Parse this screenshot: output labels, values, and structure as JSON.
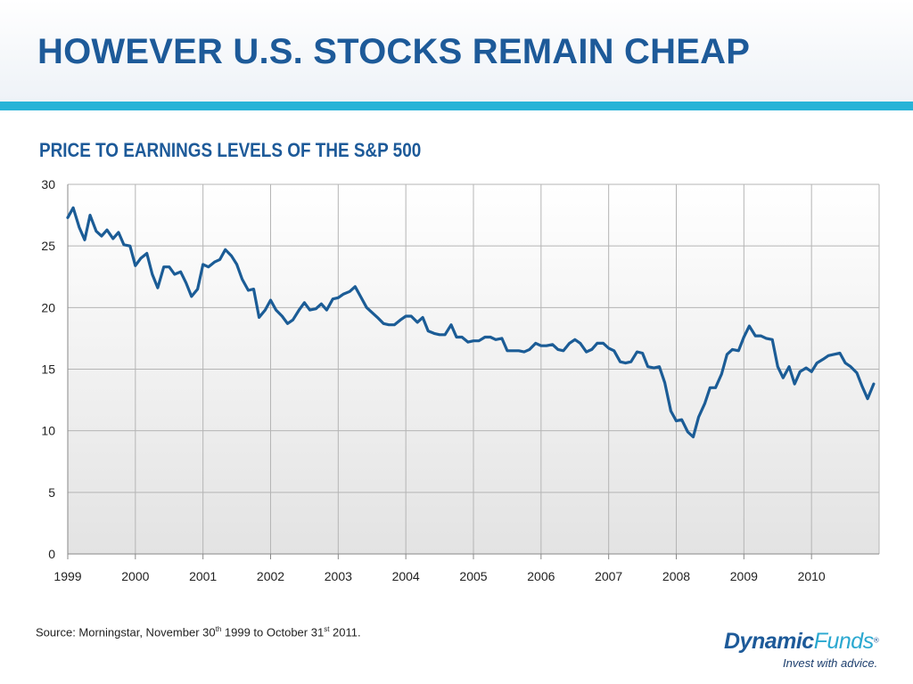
{
  "page": {
    "title": "HOWEVER U.S. STOCKS REMAIN CHEAP",
    "colors": {
      "title": "#1d5a99",
      "rule": "#27b3d7",
      "line": "#1b5c96",
      "plot_bg_top": "#ffffff",
      "plot_bg_bottom": "#e3e3e3"
    }
  },
  "footer": {
    "source_prefix": "Source: Morningstar, November 30",
    "source_sup1": "th",
    "source_mid": " 1999 to October 31",
    "source_sup2": "st",
    "source_suffix": " 2011.",
    "brand_name": "Dynamic",
    "brand_funds": "Funds",
    "brand_reg": "®",
    "brand_tagline": "Invest with advice."
  },
  "chart_data": {
    "type": "line",
    "title": "PRICE TO EARNINGS LEVELS OF THE S&P 500",
    "xlabel": "",
    "ylabel": "",
    "ylim": [
      0,
      30
    ],
    "yticks": [
      0,
      5,
      10,
      15,
      20,
      25,
      30
    ],
    "xlim": [
      1999,
      2011
    ],
    "xticks": [
      "1999",
      "2000",
      "2001",
      "2002",
      "2003",
      "2004",
      "2005",
      "2006",
      "2007",
      "2008",
      "2009",
      "2010"
    ],
    "grid": true,
    "legend": "none",
    "series": [
      {
        "x": [
          1999.0,
          1999.08,
          1999.17,
          1999.25,
          1999.33,
          1999.42,
          1999.5,
          1999.58,
          1999.67,
          1999.75,
          1999.83,
          1999.92,
          2000.0,
          2000.08,
          2000.17,
          2000.25,
          2000.33,
          2000.42,
          2000.5,
          2000.58,
          2000.67,
          2000.75,
          2000.83,
          2000.92,
          2001.0,
          2001.08,
          2001.17,
          2001.25,
          2001.33,
          2001.42,
          2001.5,
          2001.58,
          2001.67,
          2001.75,
          2001.83,
          2001.92,
          2002.0,
          2002.08,
          2002.17,
          2002.25,
          2002.33,
          2002.42,
          2002.5,
          2002.58,
          2002.67,
          2002.75,
          2002.83,
          2002.92,
          2003.0,
          2003.08,
          2003.17,
          2003.25,
          2003.33,
          2003.42,
          2003.5,
          2003.58,
          2003.67,
          2003.75,
          2003.83,
          2003.92,
          2004.0,
          2004.08,
          2004.17,
          2004.25,
          2004.33,
          2004.42,
          2004.5,
          2004.58,
          2004.67,
          2004.75,
          2004.83,
          2004.92,
          2005.0,
          2005.08,
          2005.17,
          2005.25,
          2005.33,
          2005.42,
          2005.5,
          2005.58,
          2005.67,
          2005.75,
          2005.83,
          2005.92,
          2006.0,
          2006.08,
          2006.17,
          2006.25,
          2006.33,
          2006.42,
          2006.5,
          2006.58,
          2006.67,
          2006.75,
          2006.83,
          2006.92,
          2007.0,
          2007.08,
          2007.17,
          2007.25,
          2007.33,
          2007.42,
          2007.5,
          2007.58,
          2007.67,
          2007.75,
          2007.83,
          2007.92,
          2008.0,
          2008.08,
          2008.17,
          2008.25,
          2008.33,
          2008.42,
          2008.5,
          2008.58,
          2008.67,
          2008.75,
          2008.83,
          2008.92,
          2009.0,
          2009.08,
          2009.17,
          2009.25,
          2009.33,
          2009.42,
          2009.5,
          2009.58,
          2009.67,
          2009.75,
          2009.83,
          2009.92,
          2010.0,
          2010.08,
          2010.17,
          2010.25,
          2010.33,
          2010.42,
          2010.5,
          2010.58,
          2010.67,
          2010.75,
          2010.83,
          2010.92
        ],
        "values": [
          27.3,
          28.1,
          26.5,
          25.5,
          27.5,
          26.2,
          25.8,
          26.3,
          25.6,
          26.1,
          25.1,
          25.0,
          23.4,
          24.0,
          24.4,
          22.7,
          21.6,
          23.3,
          23.3,
          22.7,
          22.9,
          22.0,
          20.9,
          21.5,
          23.5,
          23.3,
          23.7,
          23.9,
          24.7,
          24.2,
          23.5,
          22.3,
          21.4,
          21.5,
          19.2,
          19.8,
          20.6,
          19.8,
          19.3,
          18.7,
          19.0,
          19.8,
          20.4,
          19.8,
          19.9,
          20.3,
          19.8,
          20.7,
          20.8,
          21.1,
          21.3,
          21.7,
          20.9,
          20.0,
          19.6,
          19.2,
          18.7,
          18.6,
          18.6,
          19.0,
          19.3,
          19.3,
          18.8,
          19.2,
          18.1,
          17.9,
          17.8,
          17.8,
          18.6,
          17.6,
          17.6,
          17.2,
          17.3,
          17.3,
          17.6,
          17.6,
          17.4,
          17.5,
          16.5,
          16.5,
          16.5,
          16.4,
          16.6,
          17.1,
          16.9,
          16.9,
          17.0,
          16.6,
          16.5,
          17.1,
          17.4,
          17.1,
          16.4,
          16.6,
          17.1,
          17.1,
          16.7,
          16.5,
          15.6,
          15.5,
          15.6,
          16.4,
          16.3,
          15.2,
          15.1,
          15.2,
          13.9,
          11.6,
          10.8,
          10.9,
          9.9,
          9.5,
          11.1,
          12.2,
          13.5,
          13.5,
          14.6,
          16.2,
          16.6,
          16.5,
          17.6,
          18.5,
          17.7,
          17.7,
          17.5,
          17.4,
          15.2,
          14.3,
          15.2,
          13.8,
          14.8,
          15.1,
          14.8,
          15.5,
          15.8,
          16.1,
          16.2,
          16.3,
          15.5,
          15.2,
          14.7,
          13.6,
          12.6,
          13.8
        ]
      }
    ]
  }
}
